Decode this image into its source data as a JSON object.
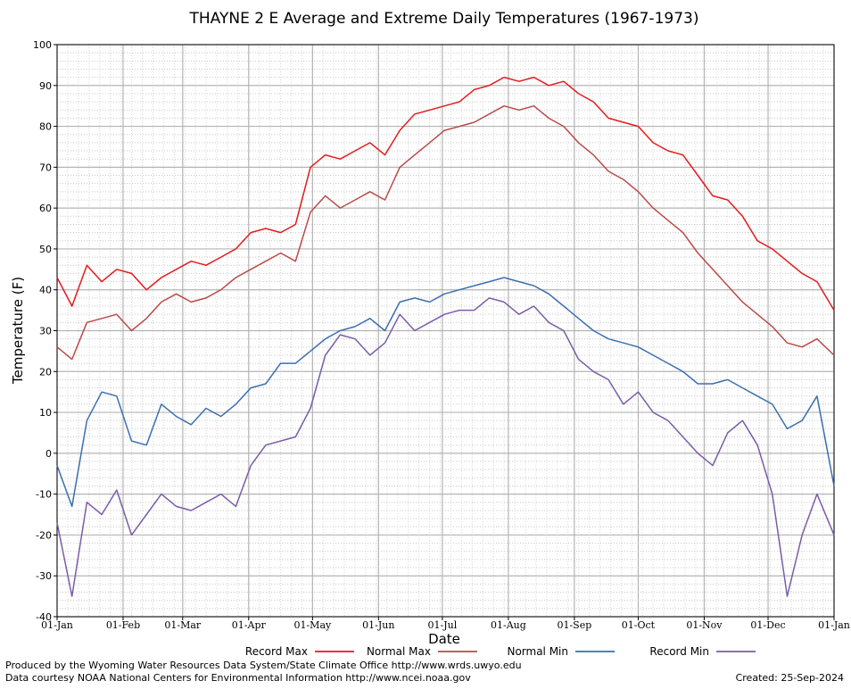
{
  "chart_data": {
    "type": "line",
    "title": "THAYNE 2 E Average and Extreme Daily Temperatures (1967-1973)",
    "xlabel": "Date",
    "ylabel": "Temperature (F)",
    "ylim": [
      -40,
      100
    ],
    "yticks": [
      "-40",
      "-30",
      "-20",
      "-10",
      "0",
      "10",
      "20",
      "30",
      "40",
      "50",
      "60",
      "70",
      "80",
      "90",
      "100"
    ],
    "xticks": [
      "01-Jan",
      "01-Feb",
      "01-Mar",
      "01-Apr",
      "01-May",
      "01-Jun",
      "01-Jul",
      "01-Aug",
      "01-Sep",
      "01-Oct",
      "01-Nov",
      "01-Dec",
      "01-Jan"
    ],
    "xtick_days": [
      1,
      32,
      60,
      91,
      121,
      152,
      182,
      213,
      244,
      274,
      305,
      335,
      366
    ],
    "xlim_days": [
      1,
      366
    ],
    "grid": true,
    "legend_position": "bottom",
    "x_sample_days": [
      1,
      8,
      15,
      22,
      29,
      36,
      43,
      50,
      57,
      64,
      71,
      78,
      85,
      92,
      99,
      106,
      113,
      120,
      127,
      134,
      141,
      148,
      155,
      162,
      169,
      176,
      183,
      190,
      197,
      204,
      211,
      218,
      225,
      232,
      239,
      246,
      253,
      260,
      267,
      274,
      281,
      288,
      295,
      302,
      309,
      316,
      323,
      330,
      337,
      344,
      351,
      358,
      366
    ],
    "series": [
      {
        "name": "Record Max",
        "color": "#e41a1c",
        "values": [
          43,
          36,
          46,
          42,
          45,
          44,
          40,
          43,
          45,
          47,
          46,
          48,
          50,
          54,
          55,
          54,
          56,
          70,
          73,
          72,
          74,
          76,
          73,
          79,
          83,
          84,
          85,
          86,
          89,
          90,
          92,
          91,
          92,
          90,
          91,
          88,
          86,
          82,
          81,
          80,
          76,
          74,
          73,
          68,
          63,
          62,
          58,
          52,
          50,
          47,
          44,
          42,
          35
        ]
      },
      {
        "name": "Normal Max",
        "color": "#b94a48",
        "values": [
          26,
          23,
          32,
          33,
          34,
          30,
          33,
          37,
          39,
          37,
          38,
          40,
          43,
          45,
          47,
          49,
          47,
          59,
          63,
          60,
          62,
          64,
          62,
          70,
          73,
          76,
          79,
          80,
          81,
          83,
          85,
          84,
          85,
          82,
          80,
          76,
          73,
          69,
          67,
          64,
          60,
          57,
          54,
          49,
          45,
          41,
          37,
          34,
          31,
          27,
          26,
          28,
          24
        ]
      },
      {
        "name": "Normal Min",
        "color": "#3a6fb0",
        "values": [
          -3,
          -13,
          8,
          15,
          14,
          3,
          2,
          12,
          9,
          7,
          11,
          9,
          12,
          16,
          17,
          22,
          22,
          25,
          28,
          30,
          31,
          33,
          30,
          37,
          38,
          37,
          39,
          40,
          41,
          42,
          43,
          42,
          41,
          39,
          36,
          33,
          30,
          28,
          27,
          26,
          24,
          22,
          20,
          17,
          17,
          18,
          16,
          14,
          12,
          6,
          8,
          14,
          -8
        ]
      },
      {
        "name": "Record Min",
        "color": "#7b5ca8",
        "values": [
          -17,
          -35,
          -12,
          -15,
          -9,
          -20,
          -15,
          -10,
          -13,
          -14,
          -12,
          -10,
          -13,
          -3,
          2,
          3,
          4,
          11,
          24,
          29,
          28,
          24,
          27,
          34,
          30,
          32,
          34,
          35,
          35,
          38,
          37,
          34,
          36,
          32,
          30,
          23,
          20,
          18,
          12,
          15,
          10,
          8,
          4,
          0,
          -3,
          5,
          8,
          2,
          -10,
          -35,
          -20,
          -10,
          -20
        ]
      }
    ]
  },
  "footer": {
    "produced_by": "Produced by the Wyoming Water Resources Data System/State Climate Office http://www.wrds.uwyo.edu",
    "data_courtesy": "Data courtesy NOAA National Centers for Environmental Information http://www.ncei.noaa.gov",
    "created": "Created: 25-Sep-2024"
  }
}
